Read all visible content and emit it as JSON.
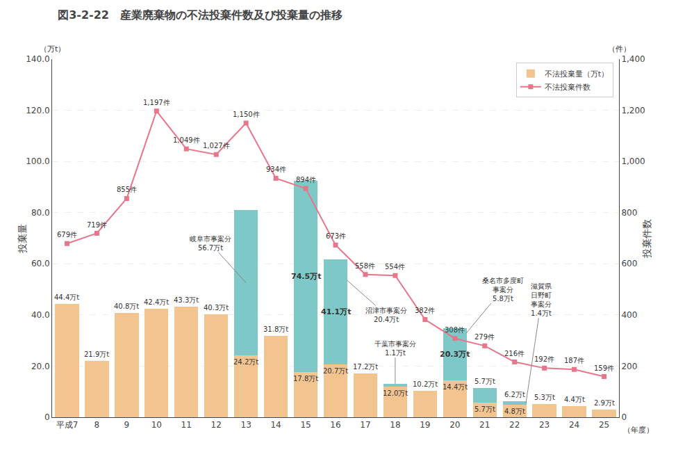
{
  "chart_data": {
    "type": "bar",
    "title": "図3-2-22　産業廃棄物の不法投棄件数及び投棄量の推移",
    "xlabel": "（年度）",
    "ylabel": "投棄量",
    "y2label": "投棄件数",
    "yunit": "（万t）",
    "y2unit": "（件）",
    "categories": [
      "平成7",
      "8",
      "9",
      "10",
      "11",
      "12",
      "13",
      "14",
      "15",
      "16",
      "17",
      "18",
      "19",
      "20",
      "21",
      "22",
      "23",
      "24",
      "25"
    ],
    "series": [
      {
        "name": "不法投棄量（万t）",
        "type": "bar",
        "color": "#F2C490",
        "values": [
          44.4,
          21.9,
          40.8,
          42.4,
          43.3,
          40.3,
          24.2,
          31.8,
          17.8,
          20.7,
          17.2,
          12.0,
          10.2,
          14.4,
          5.7,
          4.8,
          5.3,
          4.4,
          2.9
        ],
        "value_labels": [
          "44.4万t",
          "21.9万t",
          "40.8万t",
          "42.4万t",
          "43.3万t",
          "40.3万t",
          "24.2万t",
          "31.8万t",
          "17.8万t",
          "20.7万t",
          "17.2万t",
          "12.0万t",
          "10.2万t",
          "14.4万t",
          "5.7万t",
          "4.8万t",
          "5.3万t",
          "4.4万t",
          "2.9万t"
        ]
      },
      {
        "type": "bar",
        "color": "#7EC8C8",
        "values": [
          0,
          0,
          0,
          0,
          0,
          0,
          56.7,
          0,
          74.5,
          41.1,
          0,
          1.1,
          0,
          20.3,
          5.8,
          1.4,
          0,
          0,
          0
        ]
      },
      {
        "name": "不法投棄件数",
        "type": "line",
        "axis": "y2",
        "color": "#E8768A",
        "marker": "square",
        "values": [
          679,
          719,
          855,
          1197,
          1049,
          1027,
          1150,
          934,
          894,
          673,
          558,
          554,
          382,
          308,
          279,
          216,
          192,
          187,
          159
        ],
        "value_labels": [
          "679件",
          "719件",
          "855件",
          "1,197件",
          "1,049件",
          "1,027件",
          "1,150件",
          "934件",
          "894件",
          "673件",
          "558件",
          "554件",
          "382件",
          "308件",
          "279件",
          "216件",
          "192件",
          "187件",
          "159件"
        ]
      }
    ],
    "ylim": [
      0,
      140
    ],
    "yticks": [
      0,
      {
        "value": 20,
        "label": "20.0"
      },
      {
        "value": 40,
        "label": "40.0"
      },
      {
        "value": 60,
        "label": "60.0"
      },
      {
        "value": 80,
        "label": "80.0"
      },
      {
        "value": 100,
        "label": "100.0"
      },
      {
        "value": 120,
        "label": "120.0"
      },
      {
        "value": 140,
        "label": "140.0"
      }
    ],
    "y2lim": [
      0,
      1400
    ],
    "y2ticks": [
      0,
      200,
      400,
      600,
      800,
      {
        "value": 1000,
        "label": "1,000"
      },
      {
        "value": 1200,
        "label": "1,200"
      },
      {
        "value": 1400,
        "label": "1,400"
      }
    ],
    "stacked": true,
    "grid": true,
    "legend": "upper right",
    "data_labels": true,
    "annotations": [
      {
        "text": "岐阜市事案分\n56.7万t",
        "category": "13"
      },
      {
        "text": "74.5万t",
        "category": "15"
      },
      {
        "text": "41.1万t",
        "category": "16"
      },
      {
        "text": "沼津市事案分\n20.4万t",
        "category": "16"
      },
      {
        "text": "千葉市事案分\n1.1万t",
        "category": "18"
      },
      {
        "text": "20.3万t",
        "category": "20"
      },
      {
        "text": "桑名市多度町\n事案分\n5.8万t",
        "category": "20"
      },
      {
        "text": "滋賀県\n日野町\n事案分\n1.4万t",
        "category": "22"
      },
      {
        "text": "5.7万t",
        "category": "21"
      },
      {
        "text": "6.2万t",
        "category": "22"
      }
    ]
  }
}
